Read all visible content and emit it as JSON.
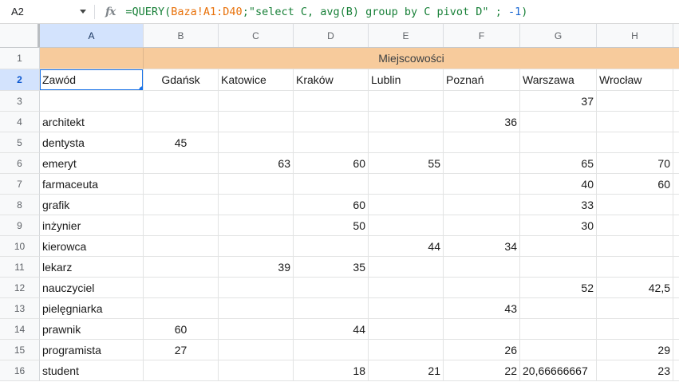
{
  "name_box": {
    "cell_ref": "A2"
  },
  "formula_bar": {
    "fx_label": "fx",
    "tokens": [
      {
        "text": "=QUERY(",
        "color": "#188038"
      },
      {
        "text": "Baza!A1:D40",
        "color": "#e8710a"
      },
      {
        "text": ";",
        "color": "#188038"
      },
      {
        "text": "\"select C, avg(B) group by C pivot D\"",
        "color": "#188038"
      },
      {
        "text": " ; ",
        "color": "#188038"
      },
      {
        "text": "-1",
        "color": "#1967d2"
      },
      {
        "text": ")",
        "color": "#188038"
      }
    ]
  },
  "sheet": {
    "column_headers": [
      "A",
      "B",
      "C",
      "D",
      "E",
      "F",
      "G",
      "H"
    ],
    "selected_column": "A",
    "selected_cell": "A2",
    "banner": {
      "row_number": "1",
      "text": "Miejscowości",
      "bg": "#f7cb9c"
    },
    "rows": [
      {
        "n": "2",
        "selected": true,
        "cells": [
          "Zawód",
          "Gdańsk",
          "Katowice",
          "Kraków",
          "Lublin",
          "Poznań",
          "Warszawa",
          "Wrocław"
        ]
      },
      {
        "n": "3",
        "cells": [
          "",
          "",
          "",
          "",
          "",
          "",
          "37",
          ""
        ]
      },
      {
        "n": "4",
        "cells": [
          "architekt",
          "",
          "",
          "",
          "",
          "36",
          "",
          ""
        ]
      },
      {
        "n": "5",
        "cells": [
          "dentysta",
          "45",
          "",
          "",
          "",
          "",
          "",
          ""
        ]
      },
      {
        "n": "6",
        "cells": [
          "emeryt",
          "",
          "63",
          "60",
          "55",
          "",
          "65",
          "70"
        ]
      },
      {
        "n": "7",
        "cells": [
          "farmaceuta",
          "",
          "",
          "",
          "",
          "",
          "40",
          "60"
        ]
      },
      {
        "n": "8",
        "cells": [
          "grafik",
          "",
          "",
          "60",
          "",
          "",
          "33",
          ""
        ]
      },
      {
        "n": "9",
        "cells": [
          "inżynier",
          "",
          "",
          "50",
          "",
          "",
          "30",
          ""
        ]
      },
      {
        "n": "10",
        "cells": [
          "kierowca",
          "",
          "",
          "",
          "44",
          "34",
          "",
          ""
        ]
      },
      {
        "n": "11",
        "cells": [
          "lekarz",
          "",
          "39",
          "35",
          "",
          "",
          "",
          ""
        ]
      },
      {
        "n": "12",
        "cells": [
          "nauczyciel",
          "",
          "",
          "",
          "",
          "",
          "52",
          "42,5"
        ]
      },
      {
        "n": "13",
        "cells": [
          "pielęgniarka",
          "",
          "",
          "",
          "",
          "43",
          "",
          ""
        ]
      },
      {
        "n": "14",
        "cells": [
          "prawnik",
          "60",
          "",
          "44",
          "",
          "",
          "",
          ""
        ]
      },
      {
        "n": "15",
        "cells": [
          "programista",
          "27",
          "",
          "",
          "",
          "26",
          "",
          "29"
        ]
      },
      {
        "n": "16",
        "cells": [
          "student",
          "",
          "",
          "18",
          "21",
          "22",
          "20,66666667",
          "23"
        ]
      }
    ],
    "colors": {
      "selection": "#1a73e8",
      "selected_header_bg": "#d3e3fd",
      "selected_header_text": "#0b57d0",
      "banner_bg": "#f7cb9c"
    }
  }
}
